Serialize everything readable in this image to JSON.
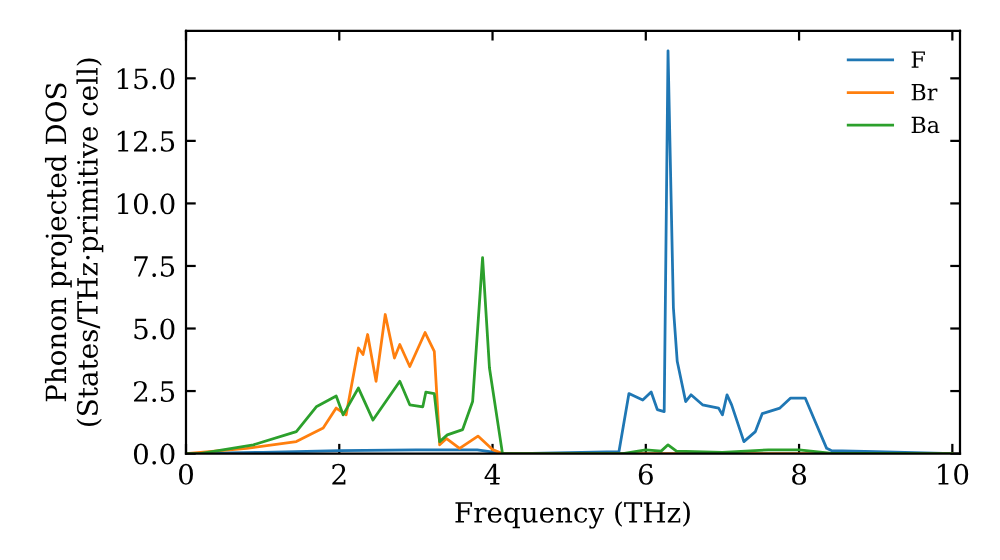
{
  "chart_data": {
    "type": "line",
    "xlabel": "Frequency (THz)",
    "ylabel": "Phonon projected DOS\n(States/THz·primitive cell)",
    "xlim": [
      0,
      10.1
    ],
    "ylim": [
      0,
      16.9
    ],
    "xticks": [
      0,
      2,
      4,
      6,
      8,
      10
    ],
    "yticks": [
      {
        "value": 0,
        "label": "0.0"
      },
      {
        "value": 2.5,
        "label": "2.5"
      },
      {
        "value": 5,
        "label": "5.0"
      },
      {
        "value": 7.5,
        "label": "7.5"
      },
      {
        "value": 10,
        "label": "10.0"
      },
      {
        "value": 12.5,
        "label": "12.5"
      },
      {
        "value": 15,
        "label": "15.0"
      }
    ],
    "grid": false,
    "legend": "top right",
    "marker": "none",
    "line_style": "solid",
    "series": [
      {
        "name": "F",
        "color": "#1f77b4",
        "x": [
          0,
          1,
          2,
          3,
          3.8,
          4.1,
          4.35,
          5.65,
          5.78,
          5.96,
          6.07,
          6.15,
          6.24,
          6.29,
          6.36,
          6.41,
          6.52,
          6.59,
          6.74,
          6.95,
          7.0,
          7.06,
          7.12,
          7.28,
          7.43,
          7.52,
          7.75,
          7.89,
          8.08,
          8.21,
          8.36,
          8.42,
          9.0,
          9.99
        ],
        "values": [
          0,
          0.05,
          0.12,
          0.15,
          0.15,
          0.02,
          0,
          0.08,
          2.4,
          2.14,
          2.46,
          1.76,
          1.68,
          16.1,
          5.83,
          3.69,
          2.08,
          2.35,
          1.95,
          1.82,
          1.55,
          2.35,
          1.95,
          0.48,
          0.88,
          1.6,
          1.82,
          2.22,
          2.22,
          1.28,
          0.21,
          0.12,
          0.08,
          0
        ]
      },
      {
        "name": "Br",
        "color": "#ff7f0e",
        "x": [
          0,
          0.79,
          1.44,
          1.79,
          1.96,
          2.09,
          2.25,
          2.31,
          2.37,
          2.48,
          2.6,
          2.72,
          2.79,
          2.92,
          3.12,
          3.24,
          3.31,
          3.4,
          3.57,
          3.81,
          4.0,
          4.13,
          10.0
        ],
        "values": [
          0,
          0.21,
          0.48,
          1.02,
          1.82,
          1.55,
          4.22,
          3.96,
          4.76,
          2.89,
          5.56,
          3.82,
          4.36,
          3.48,
          4.84,
          4.09,
          0.35,
          0.6,
          0.21,
          0.7,
          0.16,
          0,
          0
        ]
      },
      {
        "name": "Ba",
        "color": "#2ca02c",
        "x": [
          0,
          0.18,
          0.88,
          1.44,
          1.7,
          1.96,
          2.05,
          2.25,
          2.44,
          2.79,
          2.92,
          3.09,
          3.13,
          3.24,
          3.31,
          3.41,
          3.61,
          3.74,
          3.87,
          3.96,
          4.13,
          5.7,
          6.0,
          6.2,
          6.29,
          6.4,
          7.0,
          7.6,
          8.0,
          8.4,
          10.0
        ],
        "values": [
          0,
          0,
          0.35,
          0.88,
          1.87,
          2.3,
          1.55,
          2.62,
          1.34,
          2.89,
          1.95,
          1.87,
          2.46,
          2.4,
          0.48,
          0.75,
          0.96,
          2.08,
          7.83,
          3.42,
          0,
          0,
          0.15,
          0.1,
          0.35,
          0.1,
          0.05,
          0.15,
          0.15,
          0.02,
          0
        ]
      }
    ]
  }
}
